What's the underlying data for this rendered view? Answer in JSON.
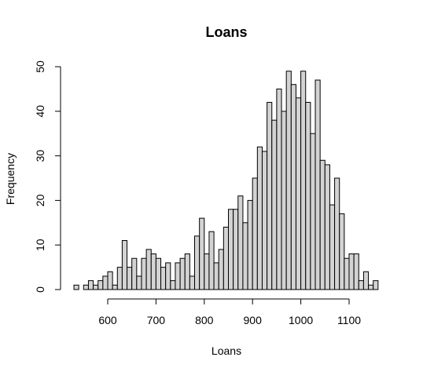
{
  "chart_data": {
    "type": "bar",
    "title": "Loans",
    "xlabel": "Loans",
    "ylabel": "Frequency",
    "bin_width": 10,
    "bin_start": 530,
    "frequencies": [
      1,
      0,
      1,
      2,
      1,
      2,
      3,
      4,
      1,
      5,
      11,
      5,
      7,
      3,
      7,
      9,
      8,
      7,
      5,
      6,
      2,
      6,
      7,
      8,
      3,
      12,
      16,
      8,
      13,
      6,
      9,
      14,
      18,
      18,
      21,
      15,
      20,
      25,
      32,
      31,
      42,
      38,
      45,
      40,
      49,
      46,
      43,
      49,
      42,
      35,
      47,
      29,
      28,
      19,
      25,
      17,
      7,
      8,
      8,
      2,
      4,
      1,
      2
    ],
    "xlim": [
      530,
      1160
    ],
    "ylim": [
      0,
      50
    ],
    "x_ticks": [
      600,
      700,
      800,
      900,
      1000,
      1100
    ],
    "y_ticks": [
      0,
      10,
      20,
      30,
      40,
      50
    ],
    "grid": false,
    "bar_fill": "#d3d3d3",
    "bar_stroke": "#000000"
  }
}
